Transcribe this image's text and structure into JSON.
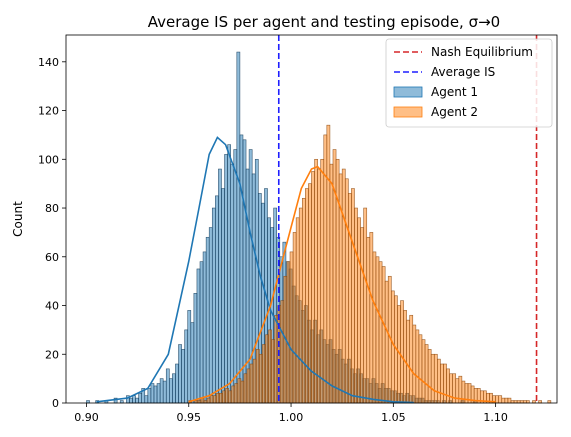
{
  "chart_data": {
    "type": "histogram",
    "title": "Average IS per agent and testing episode, σ→0",
    "xlabel": "",
    "ylabel": "Count",
    "xlim": [
      0.89,
      1.13
    ],
    "ylim": [
      0,
      151
    ],
    "x_ticks": [
      {
        "value": 0.9,
        "label": "0.90"
      },
      {
        "value": 0.95,
        "label": "0.95"
      },
      {
        "value": 1.0,
        "label": "1.00"
      },
      {
        "value": 1.05,
        "label": "1.05"
      },
      {
        "value": 1.1,
        "label": "1.10"
      }
    ],
    "y_ticks": [
      {
        "value": 0,
        "label": "0"
      },
      {
        "value": 20,
        "label": "20"
      },
      {
        "value": 40,
        "label": "40"
      },
      {
        "value": 60,
        "label": "60"
      },
      {
        "value": 80,
        "label": "80"
      },
      {
        "value": 100,
        "label": "100"
      },
      {
        "value": 120,
        "label": "120"
      },
      {
        "value": 140,
        "label": "140"
      }
    ],
    "grid": false,
    "legend_position": "top-right",
    "reference_lines": [
      {
        "name": "Nash Equilibrium",
        "x": 1.12,
        "color": "#d62728",
        "style": "dashed"
      },
      {
        "name": "Average IS",
        "x": 0.994,
        "color": "#1f1fff",
        "style": "dashed"
      }
    ],
    "series": [
      {
        "name": "Agent 1",
        "color": "#1f77b4",
        "bin_start": 0.9,
        "bin_width": 0.0015,
        "counts": [
          1,
          0,
          0,
          1,
          0,
          0,
          1,
          0,
          0,
          2,
          0,
          1,
          0,
          3,
          2,
          3,
          2,
          4,
          6,
          3,
          6,
          8,
          7,
          8,
          10,
          9,
          14,
          10,
          12,
          16,
          24,
          22,
          30,
          38,
          33,
          45,
          55,
          58,
          62,
          68,
          72,
          80,
          85,
          96,
          88,
          102,
          106,
          98,
          104,
          144,
          110,
          108,
          96,
          104,
          94,
          100,
          86,
          82,
          88,
          76,
          72,
          80,
          68,
          60,
          66,
          58,
          55,
          48,
          44,
          42,
          38,
          40,
          34,
          30,
          34,
          28,
          30,
          26,
          24,
          26,
          22,
          20,
          22,
          18,
          16,
          18,
          14,
          12,
          14,
          12,
          10,
          10,
          8,
          10,
          8,
          6,
          8,
          6,
          6,
          5,
          5,
          4,
          4,
          3,
          4,
          3,
          3,
          2,
          2,
          2,
          1,
          1,
          1,
          1,
          1,
          0,
          1,
          0,
          1,
          0,
          0,
          0,
          1,
          0,
          0,
          0,
          1,
          0,
          0,
          0,
          0,
          0,
          0,
          0,
          0,
          0,
          0,
          0,
          0,
          0,
          0,
          0,
          0,
          0,
          0,
          0,
          0,
          0,
          0,
          0,
          0
        ],
        "kde": [
          [
            0.905,
            0.5
          ],
          [
            0.92,
            2
          ],
          [
            0.93,
            6
          ],
          [
            0.94,
            20
          ],
          [
            0.95,
            58
          ],
          [
            0.955,
            80
          ],
          [
            0.96,
            102
          ],
          [
            0.964,
            109
          ],
          [
            0.968,
            106
          ],
          [
            0.975,
            90
          ],
          [
            0.98,
            70
          ],
          [
            0.985,
            52
          ],
          [
            0.99,
            38
          ],
          [
            1.0,
            22
          ],
          [
            1.01,
            13
          ],
          [
            1.02,
            7
          ],
          [
            1.03,
            3
          ],
          [
            1.04,
            1.5
          ],
          [
            1.05,
            0.5
          ],
          [
            1.06,
            0.2
          ]
        ]
      },
      {
        "name": "Agent 2",
        "color": "#ff7f0e",
        "bin_start": 0.95,
        "bin_width": 0.0015,
        "counts": [
          1,
          0,
          1,
          1,
          2,
          1,
          2,
          3,
          3,
          4,
          4,
          5,
          6,
          5,
          7,
          8,
          10,
          9,
          12,
          14,
          16,
          18,
          22,
          20,
          24,
          28,
          30,
          26,
          36,
          40,
          42,
          52,
          58,
          62,
          70,
          76,
          80,
          84,
          88,
          90,
          95,
          100,
          96,
          100,
          110,
          114,
          98,
          104,
          100,
          94,
          96,
          92,
          86,
          88,
          80,
          76,
          72,
          80,
          68,
          70,
          62,
          60,
          58,
          56,
          50,
          52,
          46,
          44,
          40,
          42,
          38,
          34,
          36,
          32,
          30,
          28,
          26,
          24,
          22,
          20,
          20,
          18,
          16,
          16,
          14,
          12,
          12,
          10,
          11,
          9,
          8,
          8,
          7,
          6,
          6,
          5,
          5,
          4,
          4,
          3,
          3,
          3,
          2,
          2,
          2,
          1,
          1,
          1,
          1,
          1,
          1,
          0,
          1,
          0,
          1,
          0,
          0,
          1,
          0
        ],
        "kde": [
          [
            0.95,
            0.5
          ],
          [
            0.96,
            3
          ],
          [
            0.97,
            8
          ],
          [
            0.98,
            18
          ],
          [
            0.99,
            40
          ],
          [
            1.0,
            72
          ],
          [
            1.005,
            88
          ],
          [
            1.01,
            96
          ],
          [
            1.013,
            97
          ],
          [
            1.02,
            90
          ],
          [
            1.03,
            66
          ],
          [
            1.04,
            42
          ],
          [
            1.05,
            24
          ],
          [
            1.06,
            12
          ],
          [
            1.07,
            5
          ],
          [
            1.08,
            2
          ],
          [
            1.09,
            1
          ],
          [
            1.1,
            0.5
          ]
        ]
      }
    ]
  }
}
